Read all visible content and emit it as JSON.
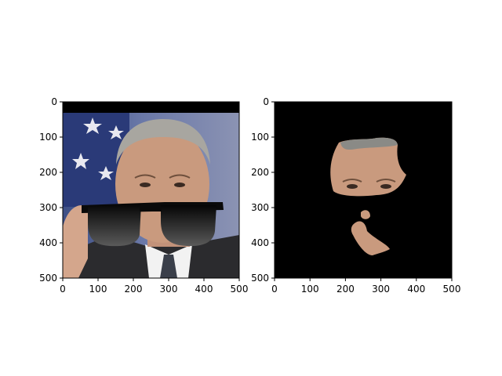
{
  "chart_data": [
    {
      "type": "image",
      "content": "photo of a man in suit and tie wearing overlaid black sunglasses, flag background",
      "xlim": [
        0,
        500
      ],
      "ylim": [
        500,
        0
      ],
      "xticks": [
        0,
        100,
        200,
        300,
        400,
        500
      ],
      "yticks": [
        0,
        100,
        200,
        300,
        400,
        500
      ],
      "colors": {
        "background_band": "#000000",
        "flag_blue": "#2a3a78",
        "skin": "#c99a7e",
        "sunglasses": "#0a0a0a",
        "suit": "#2b2b2e",
        "shirt": "#f2f2f2"
      }
    },
    {
      "type": "image",
      "content": "masked face region (eyes/forehead and mouth/chin) on black background",
      "xlim": [
        0,
        500
      ],
      "ylim": [
        500,
        0
      ],
      "xticks": [
        0,
        100,
        200,
        300,
        400,
        500
      ],
      "yticks": [
        0,
        100,
        200,
        300,
        400,
        500
      ],
      "colors": {
        "background": "#000000",
        "skin": "#c99a7e"
      }
    }
  ],
  "axis_color": "#000000",
  "figure_background": "#ffffff"
}
